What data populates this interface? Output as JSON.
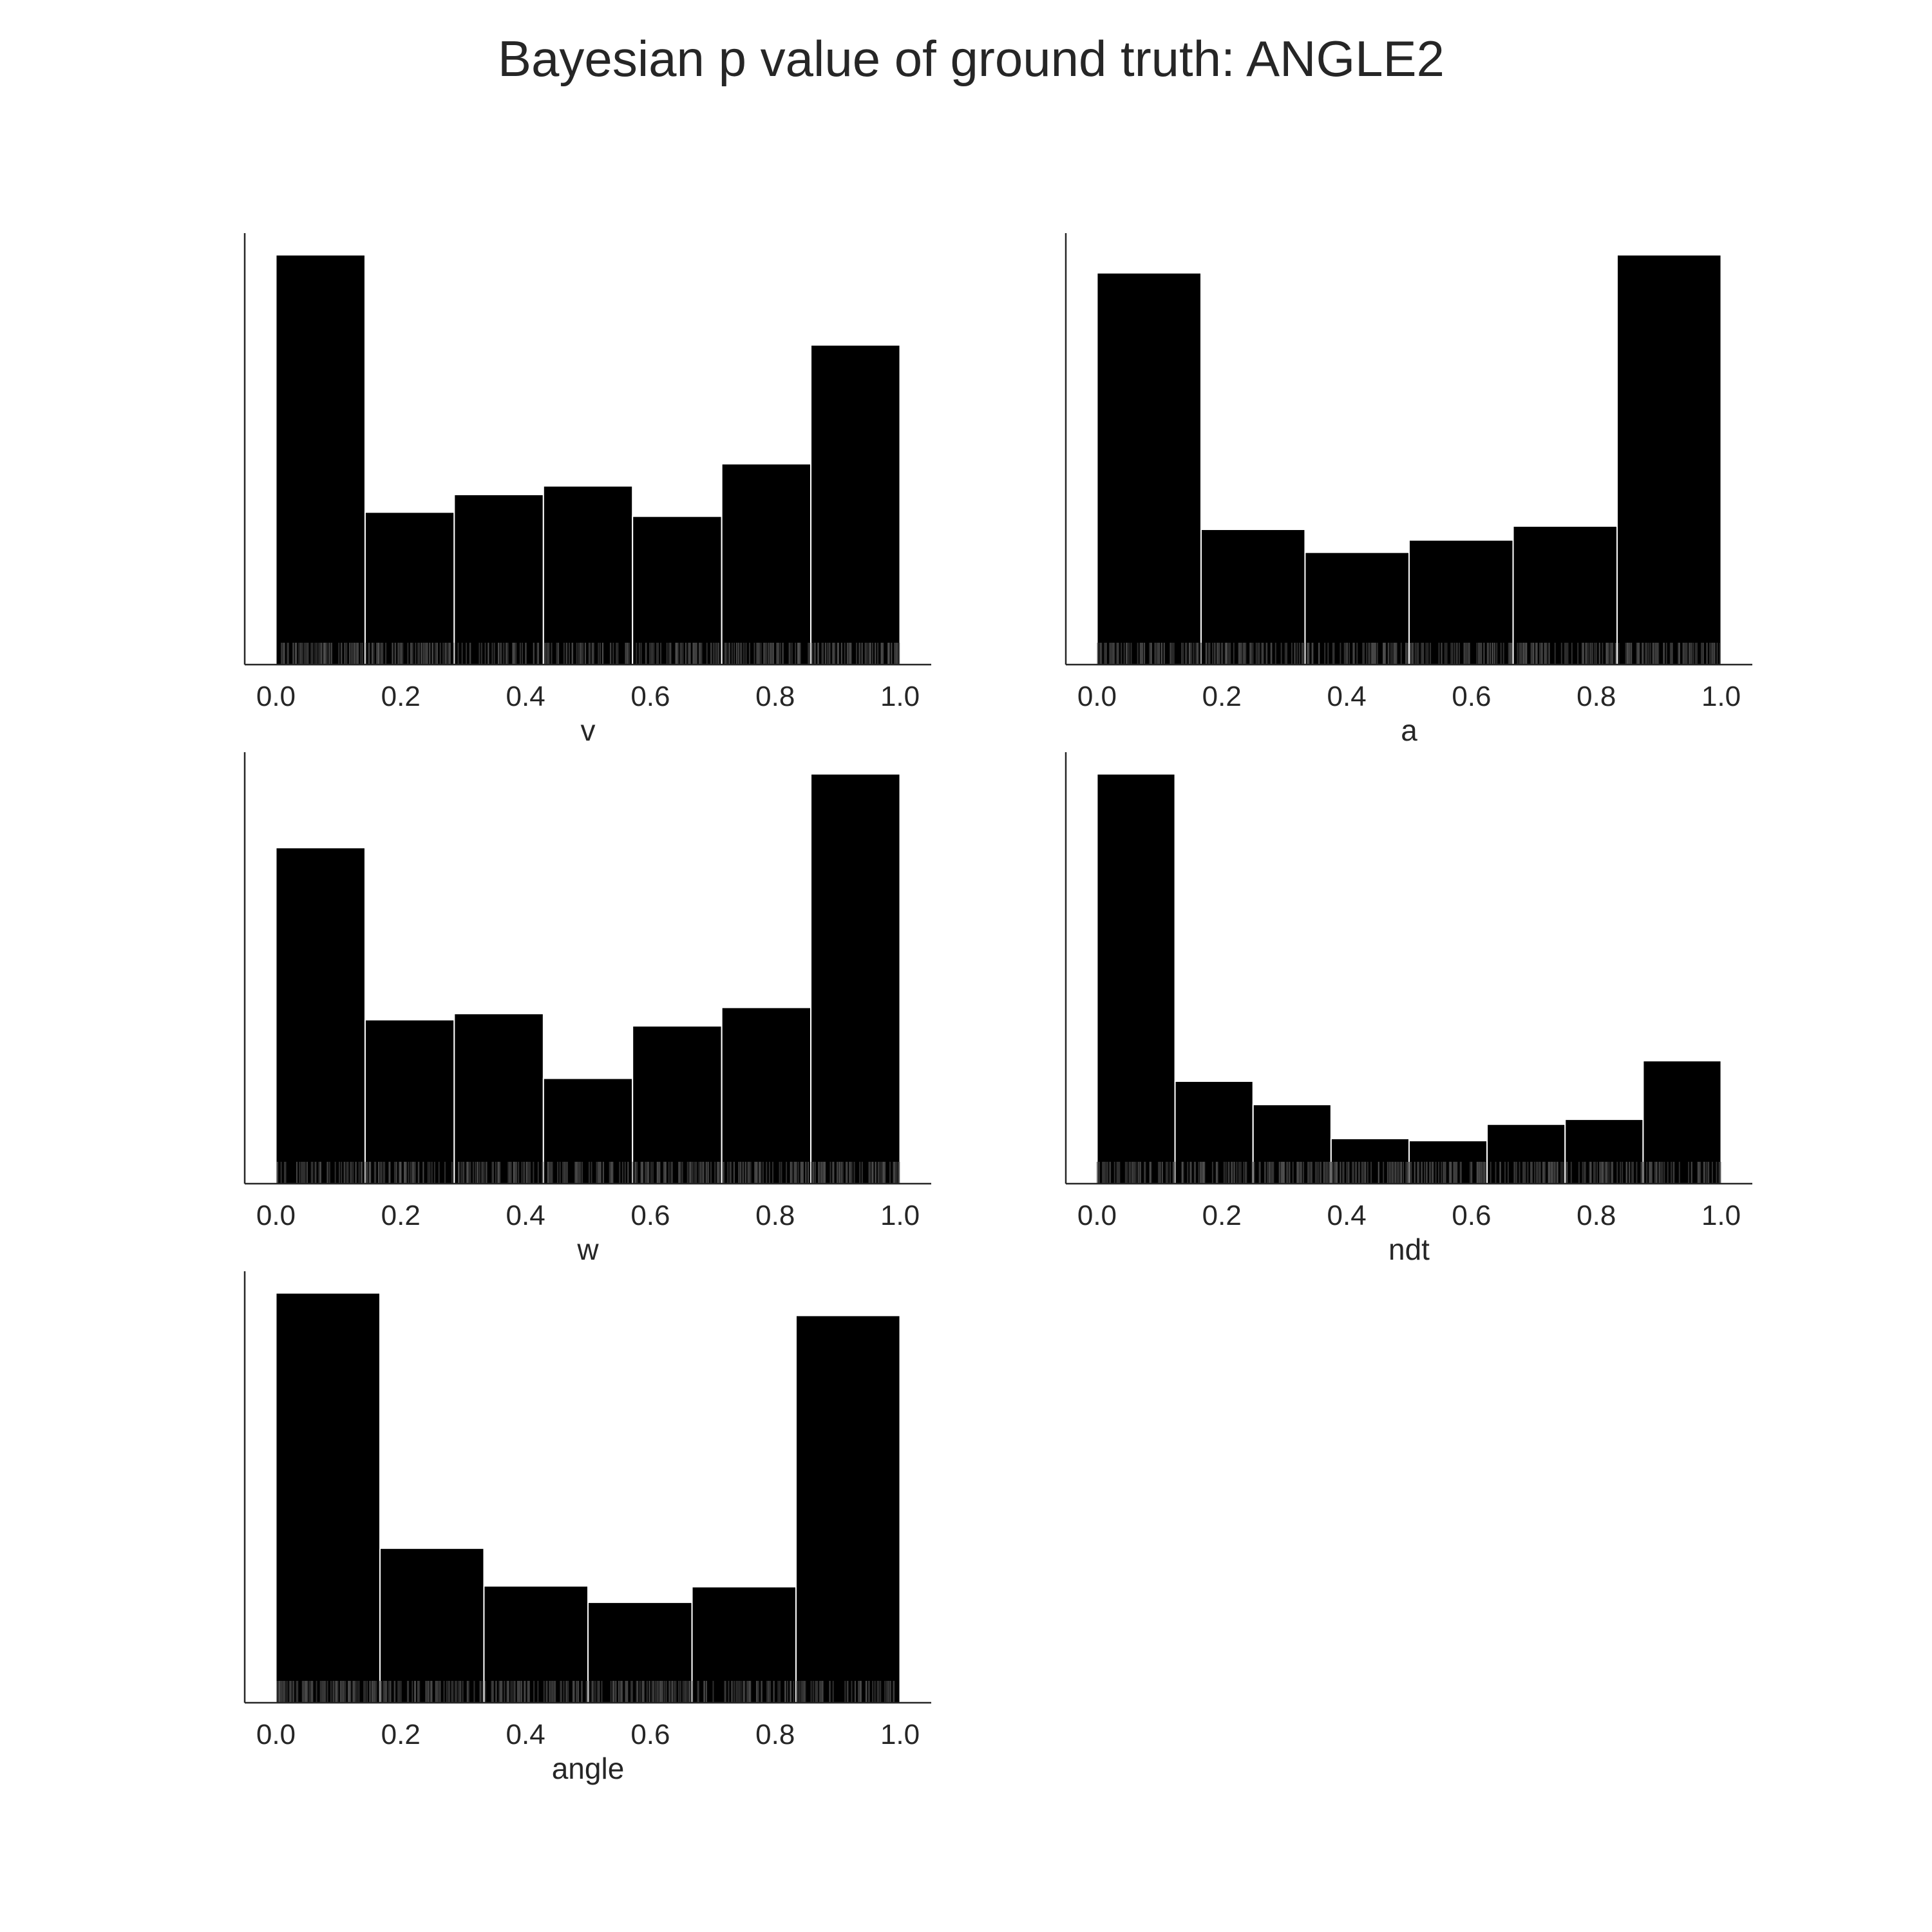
{
  "figure": {
    "title": "Bayesian p value of ground truth: ANGLE2"
  },
  "chart_data": [
    {
      "type": "bar",
      "xlabel": "v",
      "ylabel": "",
      "title": "",
      "bin_edges": [
        0.0,
        0.1429,
        0.2857,
        0.4286,
        0.5714,
        0.7143,
        0.8571,
        1.0
      ],
      "values": [
        1.0,
        0.372,
        0.415,
        0.436,
        0.362,
        0.49,
        0.78
      ],
      "xlim": [
        -0.05,
        1.05
      ],
      "ylim": [
        0,
        1.053
      ],
      "xticks": [
        "0.0",
        "0.2",
        "0.4",
        "0.6",
        "0.8",
        "1.0"
      ],
      "bar_color": "#000000",
      "rug": true,
      "grid": false
    },
    {
      "type": "bar",
      "xlabel": "a",
      "ylabel": "",
      "title": "",
      "bin_edges": [
        0.0,
        0.1667,
        0.3333,
        0.5,
        0.6667,
        0.8333,
        1.0
      ],
      "values": [
        0.956,
        0.33,
        0.274,
        0.304,
        0.338,
        1.0
      ],
      "xlim": [
        -0.05,
        1.05
      ],
      "ylim": [
        0,
        1.053
      ],
      "xticks": [
        "0.0",
        "0.2",
        "0.4",
        "0.6",
        "0.8",
        "1.0"
      ],
      "bar_color": "#000000",
      "rug": true,
      "grid": false
    },
    {
      "type": "bar",
      "xlabel": "w",
      "ylabel": "",
      "title": "",
      "bin_edges": [
        0.0,
        0.1429,
        0.2857,
        0.4286,
        0.5714,
        0.7143,
        0.8571,
        1.0
      ],
      "values": [
        0.82,
        0.4,
        0.415,
        0.257,
        0.385,
        0.43,
        1.0
      ],
      "xlim": [
        -0.05,
        1.05
      ],
      "ylim": [
        0,
        1.053
      ],
      "xticks": [
        "0.0",
        "0.2",
        "0.4",
        "0.6",
        "0.8",
        "1.0"
      ],
      "bar_color": "#000000",
      "rug": true,
      "grid": false
    },
    {
      "type": "bar",
      "xlabel": "ndt",
      "ylabel": "",
      "title": "",
      "bin_edges": [
        0.0,
        0.125,
        0.25,
        0.375,
        0.5,
        0.625,
        0.75,
        0.875,
        1.0
      ],
      "values": [
        1.0,
        0.25,
        0.193,
        0.11,
        0.105,
        0.145,
        0.157,
        0.3
      ],
      "xlim": [
        -0.05,
        1.05
      ],
      "ylim": [
        0,
        1.053
      ],
      "xticks": [
        "0.0",
        "0.2",
        "0.4",
        "0.6",
        "0.8",
        "1.0"
      ],
      "bar_color": "#000000",
      "rug": true,
      "grid": false
    },
    {
      "type": "bar",
      "xlabel": "angle",
      "ylabel": "",
      "title": "",
      "bin_edges": [
        0.0,
        0.1667,
        0.3333,
        0.5,
        0.6667,
        0.8333,
        1.0
      ],
      "values": [
        1.0,
        0.377,
        0.285,
        0.245,
        0.283,
        0.945
      ],
      "xlim": [
        -0.05,
        1.05
      ],
      "ylim": [
        0,
        1.053
      ],
      "xticks": [
        "0.0",
        "0.2",
        "0.4",
        "0.6",
        "0.8",
        "1.0"
      ],
      "bar_color": "#000000",
      "rug": true,
      "grid": false
    }
  ]
}
